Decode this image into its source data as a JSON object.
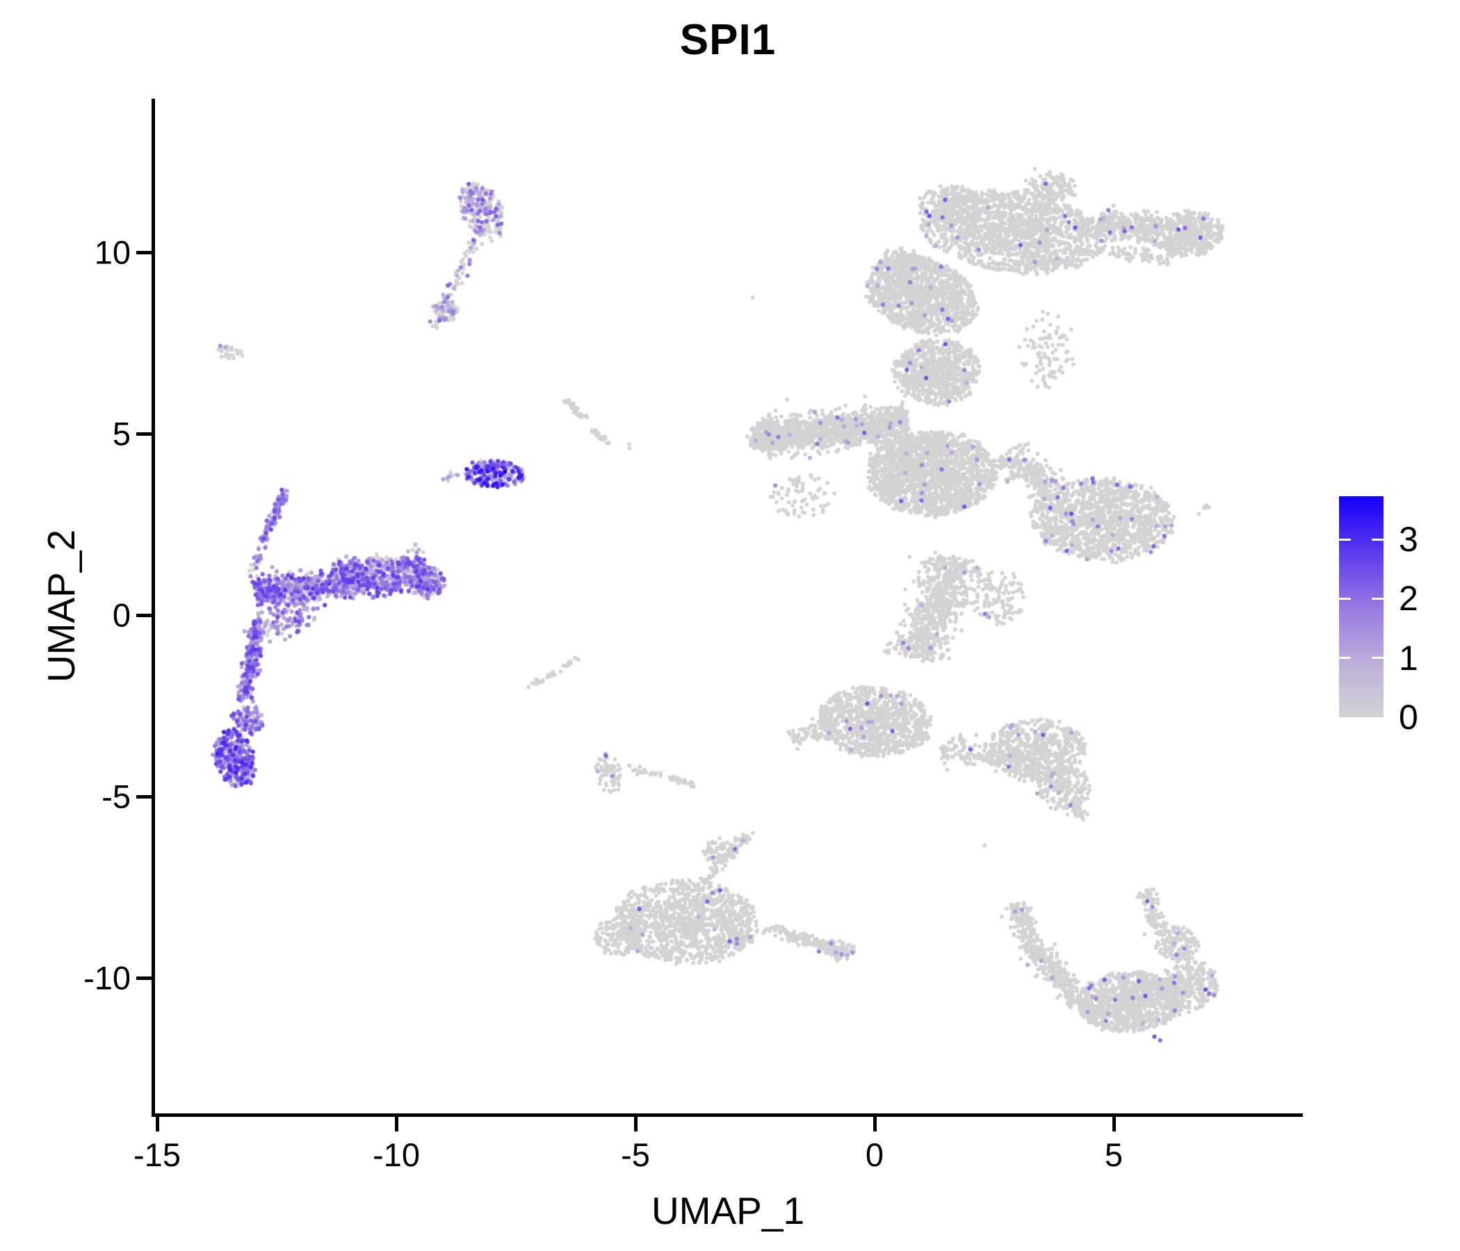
{
  "figure": {
    "title": "SPI1"
  },
  "axes": {
    "x": {
      "label": "UMAP_1",
      "ticks": [
        -15,
        -10,
        -5,
        0,
        5
      ]
    },
    "y": {
      "label": "UMAP_2",
      "ticks": [
        -10,
        -5,
        0,
        5,
        10
      ]
    }
  },
  "colorbar": {
    "ticks": [
      0,
      1,
      2,
      3
    ],
    "vmin": 0,
    "vmax": 3.73,
    "low_color": "#D3D3D3",
    "high_color": "#1400FA",
    "gradient_stops": [
      {
        "t": 0.0,
        "color": "#D3D3D3"
      },
      {
        "t": 0.25,
        "color": "#BDAEDB"
      },
      {
        "t": 0.5,
        "color": "#9678E2"
      },
      {
        "t": 0.75,
        "color": "#5B38ED"
      },
      {
        "t": 1.0,
        "color": "#1400FA"
      }
    ],
    "tick_mark_color": "#FFFFFF"
  },
  "chart_data": {
    "type": "scatter",
    "title": "SPI1",
    "xlabel": "UMAP_1",
    "ylabel": "UMAP_2",
    "xlim": [
      -15.1,
      8.9
    ],
    "ylim": [
      -13.8,
      14.2
    ],
    "grid": false,
    "legend_position": "right",
    "point_color_zero": "#D3D3D3",
    "seed": 42,
    "clusters": [
      {
        "id": "pDC-top-blob",
        "shape": "blob",
        "cx": -8.2,
        "cy": 11.15,
        "rx": 0.42,
        "ry": 0.82,
        "rot": 18,
        "n": 240,
        "p": 0.32,
        "lo": 0.8,
        "hi": 2.3
      },
      {
        "id": "pDC-top-trail",
        "shape": "streak",
        "x1": -8.32,
        "y1": 10.35,
        "x2": -9.2,
        "y2": 7.95,
        "w": 0.13,
        "n": 70,
        "p": 0.3,
        "lo": 0.8,
        "hi": 2.2
      },
      {
        "id": "pDC-trail-clump",
        "shape": "blob",
        "cx": -8.95,
        "cy": 8.4,
        "rx": 0.25,
        "ry": 0.35,
        "rot": 30,
        "n": 55,
        "p": 0.3,
        "lo": 0.8,
        "hi": 2.2
      },
      {
        "id": "tiny-left",
        "shape": "blob",
        "cx": -13.48,
        "cy": 7.26,
        "rx": 0.24,
        "ry": 0.17,
        "rot": -20,
        "n": 26,
        "p": 0.0,
        "lo": 0,
        "hi": 0
      },
      {
        "id": "mid-streak-1",
        "shape": "streak",
        "x1": -6.45,
        "y1": 5.95,
        "x2": -6.02,
        "y2": 5.35,
        "w": 0.07,
        "n": 40,
        "p": 0,
        "lo": 0,
        "hi": 0
      },
      {
        "id": "mid-streak-2",
        "shape": "streak",
        "x1": -5.9,
        "y1": 5.08,
        "x2": -5.52,
        "y2": 4.74,
        "w": 0.06,
        "n": 26,
        "p": 0,
        "lo": 0,
        "hi": 0
      },
      {
        "id": "mid-streak-dot",
        "shape": "blob",
        "cx": -5.17,
        "cy": 4.63,
        "rx": 0.07,
        "ry": 0.05,
        "rot": 0,
        "n": 2,
        "p": 0,
        "lo": 0,
        "hi": 0
      },
      {
        "id": "bright-mono",
        "shape": "blob",
        "cx": -7.95,
        "cy": 3.9,
        "rx": 0.62,
        "ry": 0.36,
        "rot": -6,
        "n": 235,
        "p": 0.72,
        "lo": 0.9,
        "hi": 3.4,
        "pw": 1.1
      },
      {
        "id": "bright-mono-trail",
        "shape": "streak",
        "x1": -9.1,
        "y1": 3.78,
        "x2": -8.55,
        "y2": 3.88,
        "w": 0.09,
        "n": 9,
        "p": 0.45,
        "lo": 1,
        "hi": 2.2
      },
      {
        "id": "mono-arc-top",
        "shape": "streak",
        "x1": -12.32,
        "y1": 3.42,
        "x2": -12.78,
        "y2": 2.05,
        "w": 0.09,
        "n": 90,
        "p": 0.85,
        "lo": 0.9,
        "hi": 2.6
      },
      {
        "id": "mono-arc-mid",
        "shape": "streak",
        "x1": -12.8,
        "y1": 1.95,
        "x2": -12.98,
        "y2": 1.2,
        "w": 0.13,
        "n": 22,
        "p": 0.7,
        "lo": 0.8,
        "hi": 2.2
      },
      {
        "id": "mono-band",
        "shape": "streak",
        "x1": -13.0,
        "y1": 0.62,
        "x2": -9.35,
        "y2": 1.08,
        "w": 0.44,
        "n": 920,
        "p": 0.78,
        "lo": 0.8,
        "hi": 2.8
      },
      {
        "id": "mono-band-fringe",
        "shape": "streak",
        "x1": -11.3,
        "y1": 1.28,
        "x2": -9.4,
        "y2": 1.52,
        "w": 0.22,
        "n": 170,
        "p": 0.7,
        "lo": 0.8,
        "hi": 2.6
      },
      {
        "id": "mono-band-cap",
        "shape": "blob",
        "cx": -9.28,
        "cy": 0.9,
        "rx": 0.3,
        "ry": 0.45,
        "rot": 0,
        "n": 130,
        "p": 0.6,
        "lo": 0.8,
        "hi": 2.5
      },
      {
        "id": "mono-scatter",
        "shape": "blob",
        "cx": -12.35,
        "cy": -0.15,
        "rx": 0.75,
        "ry": 0.5,
        "rot": 38,
        "n": 110,
        "p": 0.8,
        "lo": 0.8,
        "hi": 2.5
      },
      {
        "id": "mono-tail",
        "shape": "streak",
        "x1": -12.88,
        "y1": -0.1,
        "x2": -13.18,
        "y2": -2.35,
        "w": 0.17,
        "n": 215,
        "p": 0.9,
        "lo": 0.9,
        "hi": 2.8
      },
      {
        "id": "mono-tail-knee",
        "shape": "blob",
        "cx": -13.1,
        "cy": -2.85,
        "rx": 0.3,
        "ry": 0.42,
        "rot": 15,
        "n": 90,
        "p": 0.88,
        "lo": 0.9,
        "hi": 2.8
      },
      {
        "id": "mono-bottom-blob",
        "shape": "blob",
        "cx": -13.38,
        "cy": -3.95,
        "rx": 0.4,
        "ry": 0.8,
        "rot": 10,
        "n": 340,
        "p": 0.9,
        "lo": 0.9,
        "hi": 3.2
      },
      {
        "id": "mega-top-lobe",
        "shape": "blob",
        "cx": 2.9,
        "cy": 10.55,
        "rx": 1.95,
        "ry": 1.1,
        "rot": -10,
        "n": 1500,
        "p": 0.013,
        "lo": 0.9,
        "hi": 2.5
      },
      {
        "id": "mega-top-bump",
        "shape": "blob",
        "cx": 3.7,
        "cy": 11.8,
        "rx": 0.55,
        "ry": 0.4,
        "rot": 0,
        "n": 120,
        "p": 0.01,
        "lo": 0.9,
        "hi": 2.2
      },
      {
        "id": "mega-topleft-bump",
        "shape": "blob",
        "cx": 1.6,
        "cy": 11.3,
        "rx": 0.7,
        "ry": 0.55,
        "rot": 0,
        "n": 230,
        "p": 0.013,
        "lo": 0.9,
        "hi": 2.4
      },
      {
        "id": "mega-topleft-tip",
        "shape": "blob",
        "cx": 0.6,
        "cy": 9.6,
        "rx": 0.55,
        "ry": 0.5,
        "rot": 0,
        "n": 170,
        "p": 0.013,
        "lo": 0.9,
        "hi": 2.4
      },
      {
        "id": "mega-wing",
        "shape": "streak",
        "x1": 4.7,
        "y1": 10.85,
        "x2": 5.9,
        "y2": 10.6,
        "w": 0.38,
        "n": 300,
        "p": 0.013,
        "lo": 0.9,
        "hi": 2.4
      },
      {
        "id": "mega-wing-blob",
        "shape": "blob",
        "cx": 6.55,
        "cy": 10.5,
        "rx": 0.75,
        "ry": 0.62,
        "rot": 8,
        "n": 430,
        "p": 0.016,
        "lo": 0.9,
        "hi": 2.5
      },
      {
        "id": "mega-wing-under",
        "shape": "streak",
        "x1": 4.9,
        "y1": 10.05,
        "x2": 6.2,
        "y2": 9.8,
        "w": 0.2,
        "n": 60,
        "p": 0.01,
        "lo": 0.9,
        "hi": 2.2
      },
      {
        "id": "mega-neck",
        "shape": "blob",
        "cx": 1.0,
        "cy": 8.8,
        "rx": 1.25,
        "ry": 0.95,
        "rot": -35,
        "n": 1100,
        "p": 0.013,
        "lo": 0.9,
        "hi": 2.5
      },
      {
        "id": "mega-mid-trunk",
        "shape": "blob",
        "cx": 1.3,
        "cy": 6.7,
        "rx": 0.9,
        "ry": 0.9,
        "rot": 0,
        "n": 700,
        "p": 0.013,
        "lo": 0.9,
        "hi": 2.5
      },
      {
        "id": "mega-right-sparse",
        "shape": "blob",
        "cx": 3.6,
        "cy": 7.3,
        "rx": 0.55,
        "ry": 1.1,
        "rot": 0,
        "n": 90,
        "p": 0.01,
        "lo": 0.9,
        "hi": 2.2
      },
      {
        "id": "mega-left-arm",
        "shape": "streak",
        "x1": -2.3,
        "y1": 4.9,
        "x2": 0.7,
        "y2": 5.3,
        "w": 0.48,
        "n": 1300,
        "p": 0.012,
        "lo": 0.9,
        "hi": 2.5
      },
      {
        "id": "mega-arm-tip",
        "shape": "blob",
        "cx": -2.3,
        "cy": 4.92,
        "rx": 0.36,
        "ry": 0.38,
        "rot": 0,
        "n": 160,
        "p": 0.02,
        "lo": 0.9,
        "hi": 2.6
      },
      {
        "id": "mega-below-arm",
        "shape": "blob",
        "cx": -1.5,
        "cy": 3.3,
        "rx": 0.7,
        "ry": 0.6,
        "rot": 20,
        "n": 70,
        "p": 0.01,
        "lo": 0.9,
        "hi": 2.2
      },
      {
        "id": "mega-central",
        "shape": "blob",
        "cx": 1.2,
        "cy": 3.9,
        "rx": 1.35,
        "ry": 1.15,
        "rot": 0,
        "n": 1700,
        "p": 0.012,
        "lo": 0.9,
        "hi": 2.5
      },
      {
        "id": "mega-right-lobe",
        "shape": "blob",
        "cx": 4.75,
        "cy": 2.65,
        "rx": 1.5,
        "ry": 1.15,
        "rot": -5,
        "n": 1300,
        "p": 0.018,
        "lo": 0.9,
        "hi": 2.6
      },
      {
        "id": "mega-lobe-bridge",
        "shape": "streak",
        "x1": 2.7,
        "y1": 4.4,
        "x2": 3.7,
        "y2": 3.5,
        "w": 0.42,
        "n": 220,
        "p": 0.013,
        "lo": 0.9,
        "hi": 2.4
      },
      {
        "id": "mega-lobe-right-dots",
        "shape": "blob",
        "cx": 6.85,
        "cy": 2.9,
        "rx": 0.17,
        "ry": 0.12,
        "rot": 0,
        "n": 5,
        "p": 0,
        "lo": 0,
        "hi": 0
      },
      {
        "id": "mega-lower-trunk",
        "shape": "streak",
        "x1": 1.7,
        "y1": 1.6,
        "x2": 0.85,
        "y2": -1.2,
        "w": 0.55,
        "n": 700,
        "p": 0.012,
        "lo": 0.9,
        "hi": 2.4
      },
      {
        "id": "mega-lower-right",
        "shape": "blob",
        "cx": 2.6,
        "cy": 0.5,
        "rx": 0.55,
        "ry": 0.8,
        "rot": 0,
        "n": 110,
        "p": 0.01,
        "lo": 0.9,
        "hi": 2.2
      },
      {
        "id": "mega-bottomleft-blob",
        "shape": "blob",
        "cx": 0.0,
        "cy": -2.95,
        "rx": 1.2,
        "ry": 0.95,
        "rot": -8,
        "n": 900,
        "p": 0.013,
        "lo": 0.9,
        "hi": 2.5
      },
      {
        "id": "mega-bottomleft-tip",
        "shape": "streak",
        "x1": -1.75,
        "y1": -3.45,
        "x2": -0.9,
        "y2": -3.1,
        "w": 0.25,
        "n": 80,
        "p": 0.012,
        "lo": 0.9,
        "hi": 2.2
      },
      {
        "id": "mega-bottom-bridge",
        "shape": "streak",
        "x1": 1.4,
        "y1": -3.7,
        "x2": 3.1,
        "y2": -3.95,
        "w": 0.33,
        "n": 160,
        "p": 0.012,
        "lo": 0.9,
        "hi": 2.2
      },
      {
        "id": "mega-bottomright-tri",
        "shape": "blob",
        "cx": 3.4,
        "cy": -3.7,
        "rx": 1.0,
        "ry": 0.85,
        "rot": 0,
        "n": 560,
        "p": 0.013,
        "lo": 0.9,
        "hi": 2.4
      },
      {
        "id": "mega-tri-lower",
        "shape": "blob",
        "cx": 3.95,
        "cy": -4.75,
        "rx": 0.55,
        "ry": 0.6,
        "rot": 0,
        "n": 200,
        "p": 0.013,
        "lo": 0.9,
        "hi": 2.4
      },
      {
        "id": "mega-tri-tip",
        "shape": "streak",
        "x1": 4.1,
        "y1": -5.2,
        "x2": 4.35,
        "y2": -5.6,
        "w": 0.15,
        "n": 25,
        "p": 0.02,
        "lo": 0.9,
        "hi": 2.2
      },
      {
        "id": "small-left-clump",
        "shape": "blob",
        "cx": -5.58,
        "cy": -4.4,
        "rx": 0.27,
        "ry": 0.55,
        "rot": 5,
        "n": 60,
        "p": 0.05,
        "lo": 0.8,
        "hi": 1.6
      },
      {
        "id": "small-clump-trail",
        "shape": "streak",
        "x1": -5.3,
        "y1": -4.15,
        "x2": -3.75,
        "y2": -4.68,
        "w": 0.09,
        "n": 42,
        "p": 0,
        "lo": 0,
        "hi": 0
      },
      {
        "id": "diag-streak-a",
        "shape": "streak",
        "x1": -7.22,
        "y1": -1.97,
        "x2": -6.6,
        "y2": -1.52,
        "w": 0.05,
        "n": 26,
        "p": 0,
        "lo": 0,
        "hi": 0
      },
      {
        "id": "diag-streak-b",
        "shape": "streak",
        "x1": -6.5,
        "y1": -1.45,
        "x2": -6.23,
        "y2": -1.2,
        "w": 0.05,
        "n": 10,
        "p": 0,
        "lo": 0,
        "hi": 0
      },
      {
        "id": "bcell-main",
        "shape": "blob",
        "cx": -3.95,
        "cy": -8.45,
        "rx": 1.5,
        "ry": 1.15,
        "rot": -4,
        "n": 1150,
        "p": 0.014,
        "lo": 0.9,
        "hi": 2.4
      },
      {
        "id": "bcell-left",
        "shape": "blob",
        "cx": -5.35,
        "cy": -8.85,
        "rx": 0.5,
        "ry": 0.55,
        "rot": 0,
        "n": 140,
        "p": 0.01,
        "lo": 0.9,
        "hi": 2.2
      },
      {
        "id": "bcell-spike",
        "shape": "streak",
        "x1": -3.6,
        "y1": -7.35,
        "x2": -2.55,
        "y2": -5.95,
        "w": 0.13,
        "n": 80,
        "p": 0.02,
        "lo": 0.9,
        "hi": 2.2
      },
      {
        "id": "bcell-spike-clump",
        "shape": "blob",
        "cx": -3.25,
        "cy": -6.55,
        "rx": 0.35,
        "ry": 0.35,
        "rot": 0,
        "n": 60,
        "p": 0.02,
        "lo": 0.9,
        "hi": 2.2
      },
      {
        "id": "bcell-tail",
        "shape": "streak",
        "x1": -2.3,
        "y1": -8.6,
        "x2": -0.6,
        "y2": -9.28,
        "w": 0.17,
        "n": 140,
        "p": 0.01,
        "lo": 0.9,
        "hi": 2.2
      },
      {
        "id": "bcell-tail-end",
        "shape": "blob",
        "cx": -0.72,
        "cy": -9.22,
        "rx": 0.33,
        "ry": 0.26,
        "rot": 0,
        "n": 60,
        "p": 0.02,
        "lo": 0.9,
        "hi": 2.2
      },
      {
        "id": "nk-arm-upper",
        "shape": "streak",
        "x1": 2.95,
        "y1": -7.95,
        "x2": 3.35,
        "y2": -9.25,
        "w": 0.26,
        "n": 170,
        "p": 0.015,
        "lo": 0.9,
        "hi": 2.4
      },
      {
        "id": "nk-arm-lower",
        "shape": "streak",
        "x1": 3.35,
        "y1": -9.25,
        "x2": 4.3,
        "y2": -10.7,
        "w": 0.3,
        "n": 220,
        "p": 0.015,
        "lo": 0.9,
        "hi": 2.4
      },
      {
        "id": "nk-main",
        "shape": "blob",
        "cx": 5.35,
        "cy": -10.65,
        "rx": 1.15,
        "ry": 0.8,
        "rot": 6,
        "n": 950,
        "p": 0.02,
        "lo": 0.9,
        "hi": 2.5
      },
      {
        "id": "nk-right",
        "shape": "blob",
        "cx": 6.6,
        "cy": -10.2,
        "rx": 0.6,
        "ry": 0.65,
        "rot": 0,
        "n": 260,
        "p": 0.02,
        "lo": 0.9,
        "hi": 2.5
      },
      {
        "id": "nk-topright-bump",
        "shape": "blob",
        "cx": 6.35,
        "cy": -9.05,
        "rx": 0.45,
        "ry": 0.5,
        "rot": 0,
        "n": 150,
        "p": 0.015,
        "lo": 0.9,
        "hi": 2.4
      },
      {
        "id": "nk-top-spike",
        "shape": "streak",
        "x1": 5.65,
        "y1": -7.6,
        "x2": 5.95,
        "y2": -8.75,
        "w": 0.2,
        "n": 80,
        "p": 0.01,
        "lo": 0.9,
        "hi": 2.2
      }
    ],
    "singles_expressed": [
      {
        "x": -7.73,
        "y": 3.95,
        "v": 3.75
      },
      {
        "x": -13.68,
        "y": 7.42,
        "v": 1.5
      },
      {
        "x": -13.58,
        "y": 7.38,
        "v": 1.1
      },
      {
        "x": -5.62,
        "y": -3.88,
        "v": 2.2
      },
      {
        "x": 5.85,
        "y": -11.62,
        "v": 2.4
      },
      {
        "x": 5.97,
        "y": -11.72,
        "v": 2.0
      }
    ],
    "singles_grey": [
      {
        "x": -2.55,
        "y": 8.75
      },
      {
        "x": 3.35,
        "y": 12.3
      },
      {
        "x": 2.3,
        "y": -6.35
      }
    ]
  }
}
